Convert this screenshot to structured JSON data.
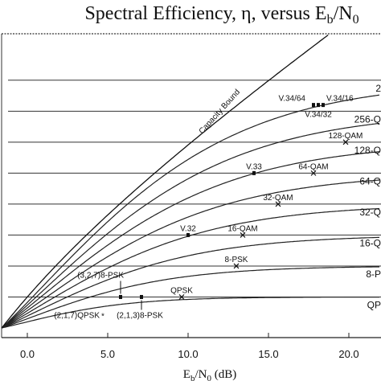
{
  "chart_data": {
    "type": "line",
    "title": "Spectral Efficiency, η, versus E",
    "title_sub_b": "b",
    "title_slash": "/N",
    "title_sub_0": "0",
    "xlabel": "E",
    "xlabel_sub_b": "b",
    "xlabel_slash": "/N",
    "xlabel_sub_0": "0",
    "xlabel_unit": " (dB)",
    "xlim": [
      -1.6,
      22
    ],
    "ylim": [
      0,
      9.5
    ],
    "xticks": [
      {
        "value": 0,
        "label": "0.0"
      },
      {
        "value": 5,
        "label": "5.0"
      },
      {
        "value": 10,
        "label": "10.0"
      },
      {
        "value": 15,
        "label": "15.0"
      },
      {
        "value": 20,
        "label": "20.0"
      }
    ],
    "bound": {
      "name": "Capacity Bound"
    },
    "curves": [
      {
        "limit": 1,
        "label": "QP"
      },
      {
        "limit": 2,
        "label": "8-P"
      },
      {
        "limit": 3,
        "label": "16-Q"
      },
      {
        "limit": 4,
        "label": "32-Q"
      },
      {
        "limit": 5,
        "label": "64-Q"
      },
      {
        "limit": 6,
        "label": "128-Q"
      },
      {
        "limit": 7,
        "label": "256-Q"
      },
      {
        "limit": 8,
        "label": "2"
      }
    ],
    "points": [
      {
        "label": "QPSK",
        "x": 9.6,
        "y": 1.0,
        "marker": "x"
      },
      {
        "label": "8-PSK",
        "x": 13.0,
        "y": 2.0,
        "marker": "x"
      },
      {
        "label": "16-QAM",
        "x": 13.4,
        "y": 3.0,
        "marker": "x"
      },
      {
        "label": "V.32",
        "x": 10.0,
        "y": 3.0,
        "marker": "dot"
      },
      {
        "label": "32-QAM",
        "x": 15.6,
        "y": 4.0,
        "marker": "x"
      },
      {
        "label": "64-QAM",
        "x": 17.8,
        "y": 5.0,
        "marker": "x"
      },
      {
        "label": "V.33",
        "x": 14.1,
        "y": 5.0,
        "marker": "dot"
      },
      {
        "label": "128-QAM",
        "x": 19.8,
        "y": 6.0,
        "marker": "x"
      },
      {
        "label": "V.34/64",
        "x": 17.8,
        "y": 7.2,
        "marker": "dot"
      },
      {
        "label": "V.34/16",
        "x": 18.4,
        "y": 7.2,
        "marker": "dot"
      },
      {
        "label": "V.34/32",
        "x": 18.1,
        "y": 7.2,
        "marker": "dot"
      },
      {
        "label": "(3,2,7)8-PSK",
        "x": 5.8,
        "y": 1.0,
        "marker": "dot"
      },
      {
        "label": "(2,1,3)8-PSK",
        "x": 7.1,
        "y": 1.0,
        "marker": "dot"
      },
      {
        "label": "(2,1,7)QPSK",
        "x": 4.7,
        "y": 0.4,
        "marker": "star"
      }
    ]
  }
}
